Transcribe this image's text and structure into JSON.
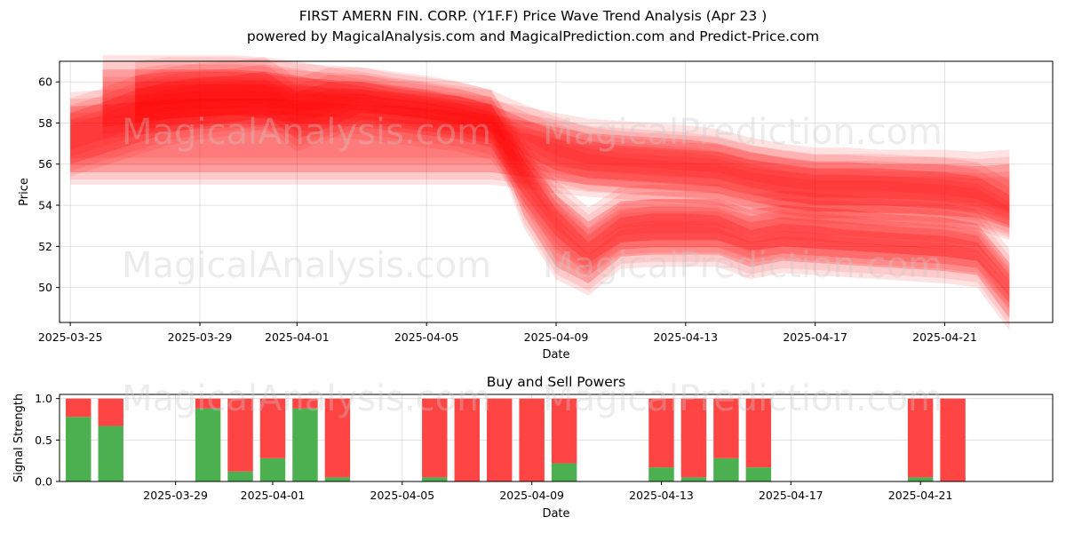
{
  "header": {
    "title": "FIRST AMERN FIN. CORP. (Y1F.F) Price Wave Trend Analysis (Apr 23 )",
    "subtitle": "powered by MagicalAnalysis.com and MagicalPrediction.com and Predict-Price.com"
  },
  "watermarks": [
    "MagicalAnalysis.com",
    "MagicalPrediction.com"
  ],
  "colors": {
    "band": "#ff0000",
    "buy": "#4caf50",
    "sell": "#ff4444"
  },
  "chart_data": [
    {
      "type": "area",
      "xlabel": "Date",
      "ylabel": "Price",
      "ylim": [
        48.3,
        61.0
      ],
      "xlim": [
        "2025-03-24T16:00",
        "2025-04-24T08:00"
      ],
      "yticks": [
        50,
        52,
        54,
        56,
        58,
        60
      ],
      "xticks": [
        "2025-03-25",
        "2025-03-29",
        "2025-04-01",
        "2025-04-05",
        "2025-04-09",
        "2025-04-13",
        "2025-04-17",
        "2025-04-21"
      ],
      "grid": true,
      "x": [
        "2025-03-25",
        "2025-03-26",
        "2025-03-27",
        "2025-03-28",
        "2025-03-29",
        "2025-03-30",
        "2025-03-31",
        "2025-04-01",
        "2025-04-02",
        "2025-04-03",
        "2025-04-04",
        "2025-04-05",
        "2025-04-06",
        "2025-04-07",
        "2025-04-08",
        "2025-04-09",
        "2025-04-10",
        "2025-04-11",
        "2025-04-12",
        "2025-04-13",
        "2025-04-14",
        "2025-04-15",
        "2025-04-16",
        "2025-04-17",
        "2025-04-18",
        "2025-04-19",
        "2025-04-20",
        "2025-04-21",
        "2025-04-22",
        "2025-04-23",
        "2025-04-24"
      ],
      "series": [
        {
          "lower": [
            56.0,
            56.5,
            57.0,
            57.5,
            57.8,
            58.0,
            58.3,
            58.5,
            58.7,
            58.6,
            58.4,
            58.2,
            57.9,
            57.6,
            56.5,
            55.7,
            55.3,
            55.2,
            55.1,
            55.0,
            54.9,
            54.5,
            54.2,
            54.0,
            54.0,
            54.0,
            53.9,
            53.8,
            53.6,
            53.0,
            null
          ],
          "upper": [
            58.5,
            59.0,
            59.6,
            60.0,
            60.2,
            60.3,
            60.5,
            60.3,
            60.0,
            59.8,
            59.5,
            59.3,
            59.1,
            58.9,
            58.2,
            57.6,
            57.1,
            56.9,
            56.8,
            56.7,
            56.6,
            56.2,
            56.0,
            55.8,
            55.8,
            55.8,
            55.7,
            55.6,
            55.4,
            54.5,
            null
          ]
        },
        {
          "lower": [
            null,
            57.8,
            58.0,
            58.2,
            58.3,
            58.4,
            58.4,
            57.2,
            57.8,
            58.5,
            58.4,
            58.2,
            58.0,
            57.6,
            53.5,
            51.0,
            50.2,
            51.5,
            51.6,
            51.6,
            51.6,
            51.0,
            51.3,
            51.2,
            51.1,
            51.0,
            50.9,
            50.8,
            50.6,
            48.5,
            null
          ],
          "upper": [
            null,
            60.6,
            60.6,
            60.6,
            60.6,
            60.6,
            60.5,
            59.5,
            60.0,
            60.0,
            59.8,
            59.6,
            59.3,
            58.9,
            56.2,
            53.8,
            52.2,
            53.4,
            53.6,
            53.6,
            53.5,
            52.8,
            53.1,
            53.0,
            52.8,
            52.7,
            52.6,
            52.5,
            52.2,
            50.3,
            null
          ]
        },
        {
          "lower": [
            null,
            null,
            58.0,
            58.2,
            58.3,
            58.4,
            58.2,
            58.0,
            57.9,
            57.8,
            57.6,
            57.4,
            57.2,
            56.8,
            54.5,
            52.5,
            51.2,
            52.2,
            52.3,
            52.3,
            52.3,
            51.8,
            52.0,
            51.9,
            51.8,
            51.7,
            51.6,
            51.5,
            51.3,
            49.6,
            null
          ],
          "upper": [
            null,
            null,
            60.3,
            60.5,
            60.5,
            60.5,
            60.4,
            60.2,
            60.1,
            60.0,
            59.7,
            59.5,
            59.3,
            58.9,
            56.5,
            54.5,
            53.2,
            54.2,
            54.3,
            54.3,
            54.3,
            53.8,
            54.0,
            53.9,
            53.8,
            53.6,
            53.5,
            53.4,
            53.1,
            51.2,
            null
          ]
        },
        {
          "lower": [
            55.6,
            55.6,
            55.6,
            55.6,
            55.6,
            55.6,
            55.6,
            55.6,
            55.6,
            55.6,
            55.6,
            55.6,
            55.6,
            55.6,
            55.4,
            55.2,
            55.0,
            54.9,
            54.8,
            54.7,
            54.6,
            54.2,
            53.9,
            53.7,
            53.7,
            53.6,
            53.6,
            53.5,
            53.4,
            52.9,
            null
          ],
          "upper": [
            58.8,
            58.9,
            59.0,
            59.1,
            59.2,
            59.2,
            59.2,
            59.1,
            59.0,
            58.9,
            58.8,
            58.7,
            58.6,
            58.4,
            58.1,
            57.8,
            57.5,
            57.4,
            57.3,
            57.2,
            57.0,
            56.6,
            56.3,
            56.1,
            56.1,
            56.0,
            56.0,
            56.0,
            55.9,
            56.0,
            null
          ]
        }
      ]
    },
    {
      "type": "bar",
      "title": "Buy and Sell Powers",
      "xlabel": "Date",
      "ylabel": "Signal Strength",
      "ylim": [
        0,
        1.05
      ],
      "yticks": [
        "0.0",
        "0.5",
        "1.0"
      ],
      "xticks": [
        "2025-03-29",
        "2025-04-01",
        "2025-04-05",
        "2025-04-09",
        "2025-04-13",
        "2025-04-17",
        "2025-04-21"
      ],
      "categories": [
        "2025-03-26",
        "2025-03-27",
        "2025-03-30",
        "2025-03-31",
        "2025-04-01",
        "2025-04-02",
        "2025-04-03",
        "2025-04-06",
        "2025-04-07",
        "2025-04-08",
        "2025-04-09",
        "2025-04-10",
        "2025-04-13",
        "2025-04-14",
        "2025-04-15",
        "2025-04-16",
        "2025-04-21",
        "2025-04-22"
      ],
      "series": [
        {
          "name": "Buy",
          "values": [
            0.78,
            0.67,
            0.88,
            0.12,
            0.28,
            0.88,
            0.05,
            0.05,
            0.0,
            0.0,
            0.0,
            0.22,
            0.17,
            0.05,
            0.28,
            0.17,
            0.05,
            0.0
          ]
        },
        {
          "name": "Sell",
          "values": [
            0.22,
            0.33,
            0.12,
            0.88,
            0.72,
            0.12,
            0.95,
            0.95,
            1.0,
            1.0,
            1.0,
            0.78,
            0.83,
            0.95,
            0.72,
            0.83,
            0.95,
            1.0
          ]
        }
      ]
    }
  ]
}
